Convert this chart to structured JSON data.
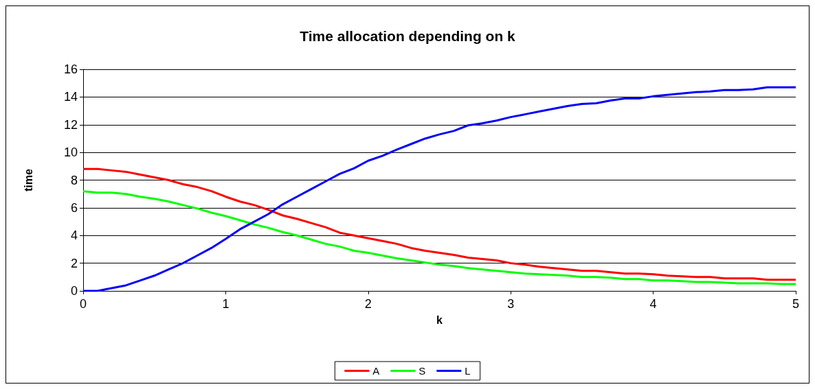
{
  "chart_data": {
    "type": "line",
    "title": "Time allocation depending on k",
    "xlabel": "k",
    "ylabel": "time",
    "x": [
      0,
      0.1,
      0.2,
      0.3,
      0.4,
      0.5,
      0.6,
      0.7,
      0.8,
      0.9,
      1,
      1.1,
      1.2,
      1.3,
      1.4,
      1.5,
      1.6,
      1.7,
      1.8,
      1.9,
      2,
      2.1,
      2.2,
      2.3,
      2.4,
      2.5,
      2.6,
      2.7,
      2.8,
      2.9,
      3,
      3.1,
      3.2,
      3.3,
      3.4,
      3.5,
      3.6,
      3.7,
      3.8,
      3.9,
      4,
      4.1,
      4.2,
      4.3,
      4.4,
      4.5,
      4.6,
      4.7,
      4.8,
      4.9,
      5
    ],
    "series": [
      {
        "name": "A",
        "color": "#ff0000",
        "values": [
          8.8,
          8.8,
          8.7,
          8.6,
          8.4,
          8.2,
          8.0,
          7.7,
          7.5,
          7.2,
          6.8,
          6.45,
          6.2,
          5.85,
          5.45,
          5.2,
          4.9,
          4.6,
          4.2,
          4.0,
          3.8,
          3.6,
          3.4,
          3.1,
          2.9,
          2.75,
          2.6,
          2.4,
          2.3,
          2.2,
          2.0,
          1.9,
          1.75,
          1.65,
          1.55,
          1.45,
          1.45,
          1.35,
          1.25,
          1.25,
          1.2,
          1.1,
          1.05,
          1.0,
          1.0,
          0.9,
          0.9,
          0.9,
          0.8,
          0.8,
          0.8
        ]
      },
      {
        "name": "S",
        "color": "#00ff00",
        "values": [
          7.2,
          7.1,
          7.1,
          7.0,
          6.8,
          6.65,
          6.45,
          6.2,
          5.95,
          5.65,
          5.4,
          5.1,
          4.8,
          4.55,
          4.25,
          4.0,
          3.7,
          3.4,
          3.2,
          2.9,
          2.75,
          2.55,
          2.35,
          2.2,
          2.05,
          1.9,
          1.8,
          1.65,
          1.55,
          1.45,
          1.35,
          1.25,
          1.2,
          1.15,
          1.1,
          1.0,
          1.0,
          0.95,
          0.85,
          0.85,
          0.75,
          0.75,
          0.7,
          0.65,
          0.65,
          0.6,
          0.55,
          0.55,
          0.55,
          0.5,
          0.5
        ]
      },
      {
        "name": "L",
        "color": "#0000ff",
        "values": [
          0,
          0,
          0.2,
          0.4,
          0.75,
          1.1,
          1.55,
          2.0,
          2.55,
          3.1,
          3.75,
          4.45,
          5.0,
          5.55,
          6.25,
          6.8,
          7.35,
          7.9,
          8.45,
          8.85,
          9.4,
          9.75,
          10.2,
          10.6,
          11.0,
          11.3,
          11.55,
          11.95,
          12.1,
          12.3,
          12.55,
          12.75,
          12.95,
          13.15,
          13.35,
          13.5,
          13.55,
          13.75,
          13.9,
          13.9,
          14.05,
          14.15,
          14.25,
          14.35,
          14.4,
          14.5,
          14.5,
          14.55,
          14.7,
          14.7,
          14.7
        ]
      }
    ],
    "xlim": [
      0,
      5
    ],
    "xticks": [
      0,
      1,
      2,
      3,
      4,
      5
    ],
    "ylim": [
      0,
      16
    ],
    "yticks": [
      0,
      2,
      4,
      6,
      8,
      10,
      12,
      14,
      16
    ],
    "grid": "y",
    "legend": "bottom",
    "marker": "none",
    "line_style": "solid"
  }
}
